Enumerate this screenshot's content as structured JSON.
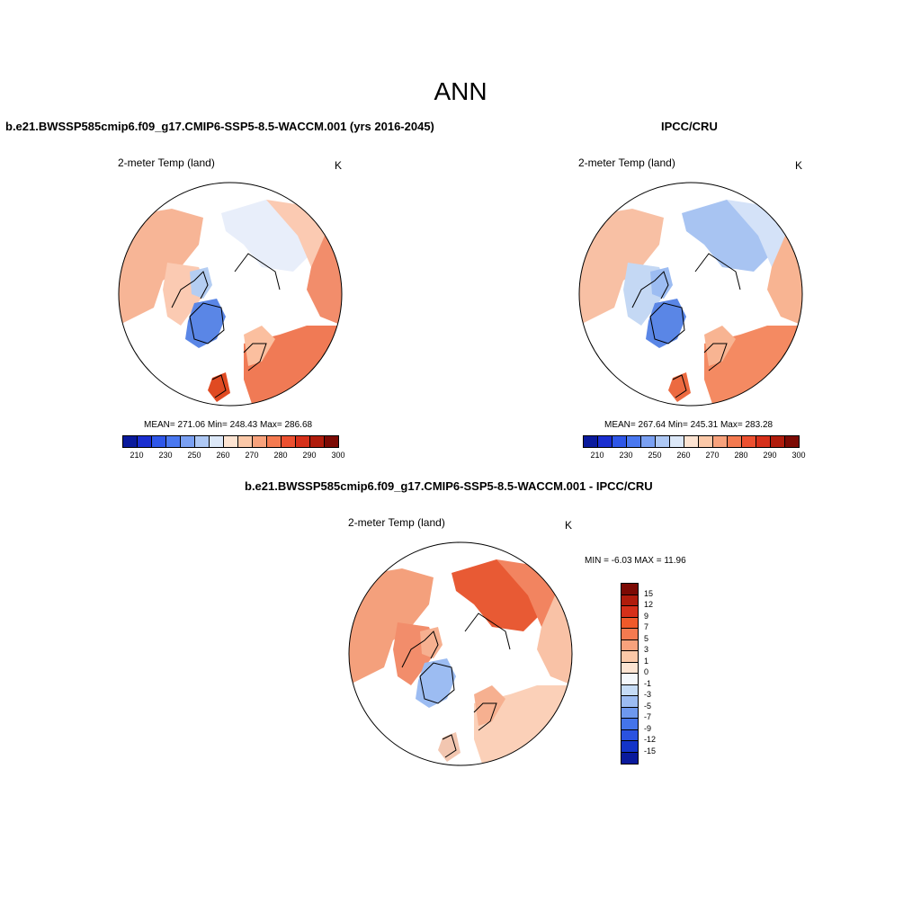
{
  "figure": {
    "title": "ANN"
  },
  "panels": [
    {
      "title": "b.e21.BWSSP585cmip6.f09_g17.CMIP6-SSP5-8.5-WACCM.001 (yrs 2016-2045)",
      "variable": "2-meter Temp (land)",
      "units": "K",
      "stats": "MEAN= 271.06  Min= 248.43  Max= 286.68"
    },
    {
      "title": "IPCC/CRU",
      "variable": "2-meter Temp (land)",
      "units": "K",
      "stats": "MEAN= 267.64  Min= 245.31  Max= 283.28"
    },
    {
      "title": "b.e21.BWSSP585cmip6.f09_g17.CMIP6-SSP5-8.5-WACCM.001 - IPCC/CRU",
      "variable": "2-meter Temp (land)",
      "units": "K",
      "stats": "MIN =  -6.03 MAX =  11.96"
    }
  ],
  "colorbar_abs": {
    "colors": [
      "#0a1a9c",
      "#1a2ed0",
      "#2e56e8",
      "#4a78f0",
      "#7aa0f2",
      "#aec8f4",
      "#dce8f8",
      "#fde4d2",
      "#fbc8a8",
      "#f8a27c",
      "#f47a50",
      "#ec5030",
      "#d6301a",
      "#b01c0c",
      "#7c0a04"
    ],
    "ticks": [
      "210",
      "230",
      "250",
      "260",
      "270",
      "280",
      "290",
      "300"
    ]
  },
  "colorbar_diff": {
    "colors": [
      "#7c0a04",
      "#b01c0c",
      "#d6301a",
      "#f05a2a",
      "#f47a50",
      "#f8a27c",
      "#fbc8a8",
      "#fde4d2",
      "#f4f8fc",
      "#c6dcf6",
      "#9cbcf2",
      "#6e98ee",
      "#4474ea",
      "#2a52e0",
      "#1434c8",
      "#0a1a9c"
    ],
    "ticks": [
      "15",
      "12",
      "9",
      "7",
      "5",
      "3",
      "1",
      "0",
      "-1",
      "-3",
      "-5",
      "-7",
      "-9",
      "-12",
      "-15"
    ]
  },
  "chart_data": [
    {
      "type": "heatmap",
      "title": "b.e21.BWSSP585cmip6.f09_g17.CMIP6-SSP5-8.5-WACCM.001 (yrs 2016-2045)",
      "variable": "2-meter Temp (land)",
      "units": "K",
      "projection": "north polar stereographic",
      "mean": 271.06,
      "min": 248.43,
      "max": 286.68,
      "colorbar_range": [
        200,
        310
      ]
    },
    {
      "type": "heatmap",
      "title": "IPCC/CRU",
      "variable": "2-meter Temp (land)",
      "units": "K",
      "projection": "north polar stereographic",
      "mean": 267.64,
      "min": 245.31,
      "max": 283.28,
      "colorbar_range": [
        200,
        310
      ]
    },
    {
      "type": "heatmap",
      "title": "b.e21.BWSSP585cmip6.f09_g17.CMIP6-SSP5-8.5-WACCM.001 - IPCC/CRU",
      "variable": "2-meter Temp (land)",
      "units": "K",
      "projection": "north polar stereographic",
      "min": -6.03,
      "max": 11.96,
      "colorbar_levels": [
        -15,
        -12,
        -9,
        -7,
        -5,
        -3,
        -1,
        0,
        1,
        3,
        5,
        7,
        9,
        12,
        15
      ]
    }
  ]
}
